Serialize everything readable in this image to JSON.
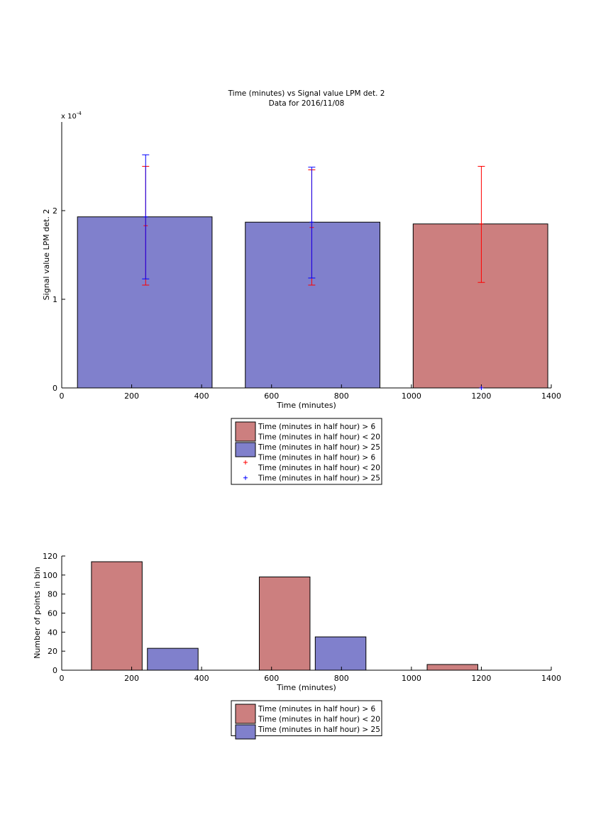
{
  "chart_data": [
    {
      "type": "bar",
      "title": "Time (minutes) vs Signal value LPM det. 2",
      "subtitle": "Data for 2016/11/08",
      "xlabel": "Time (minutes)",
      "ylabel": "Signal value LPM det. 2",
      "exponent_label": "x 10",
      "exponent_power": "-4",
      "xlim": [
        0,
        1400
      ],
      "ylim": [
        0,
        0.0003
      ],
      "x_ticks": [
        "0",
        "200",
        "400",
        "600",
        "800",
        "1000",
        "1200",
        "1400"
      ],
      "y_ticks": [
        "0",
        "1",
        "2"
      ],
      "bars": [
        {
          "x_start": 45,
          "x_end": 430,
          "value": 0.000193,
          "color": "#8080cc"
        },
        {
          "x_start": 525,
          "x_end": 910,
          "value": 0.000187,
          "color": "#8080cc"
        },
        {
          "x_start": 1005,
          "x_end": 1390,
          "value": 0.000185,
          "color": "#cc7f7f"
        }
      ],
      "error_bars": [
        {
          "x": 240,
          "center": 0.000183,
          "low": 0.000116,
          "high": 0.00025,
          "color": "#ff0000"
        },
        {
          "x": 240,
          "center": 0.000193,
          "low": 0.000123,
          "high": 0.000263,
          "color": "#0000ff"
        },
        {
          "x": 715,
          "center": 0.000181,
          "low": 0.000116,
          "high": 0.000246,
          "color": "#ff0000"
        },
        {
          "x": 715,
          "center": 0.000187,
          "low": 0.000124,
          "high": 0.000249,
          "color": "#0000ff"
        },
        {
          "x": 1200,
          "center": 0.000185,
          "low": 0.000119,
          "high": 0.00025,
          "color": "#ff0000"
        }
      ],
      "extra_markers": [
        {
          "x": 1200,
          "y": 0.0,
          "color": "#0000ff"
        }
      ],
      "legend": {
        "placement": "below",
        "entries": [
          {
            "kind": "patch",
            "color": "#cc7f7f",
            "lines": [
              "Time (minutes in half hour) > 6",
              "Time (minutes in half hour) < 20"
            ]
          },
          {
            "kind": "patch",
            "color": "#8080cc",
            "lines": [
              "Time (minutes in half hour) > 25"
            ]
          },
          {
            "kind": "marker",
            "color": "#ff0000",
            "lines": [
              "Time (minutes in half hour) > 6",
              "Time (minutes in half hour) < 20"
            ]
          },
          {
            "kind": "marker",
            "color": "#0000ff",
            "lines": [
              "Time (minutes in half hour) > 25"
            ]
          }
        ]
      }
    },
    {
      "type": "bar",
      "xlabel": "Time (minutes)",
      "ylabel": "Number of points in bin",
      "xlim": [
        0,
        1400
      ],
      "ylim": [
        0,
        120
      ],
      "x_ticks": [
        "0",
        "200",
        "400",
        "600",
        "800",
        "1000",
        "1200",
        "1400"
      ],
      "y_ticks": [
        "0",
        "20",
        "40",
        "60",
        "80",
        "100",
        "120"
      ],
      "bars": [
        {
          "x_start": 85,
          "x_end": 230,
          "value": 114,
          "color": "#cc7f7f"
        },
        {
          "x_start": 245,
          "x_end": 390,
          "value": 23,
          "color": "#8080cc"
        },
        {
          "x_start": 565,
          "x_end": 710,
          "value": 98,
          "color": "#cc7f7f"
        },
        {
          "x_start": 725,
          "x_end": 870,
          "value": 35,
          "color": "#8080cc"
        },
        {
          "x_start": 1045,
          "x_end": 1190,
          "value": 6,
          "color": "#cc7f7f"
        }
      ],
      "legend": {
        "placement": "below",
        "entries": [
          {
            "kind": "patch",
            "color": "#cc7f7f",
            "lines": [
              "Time (minutes in half hour) > 6",
              "Time (minutes in half hour) < 20"
            ]
          },
          {
            "kind": "patch",
            "color": "#8080cc",
            "lines": [
              "Time (minutes in half hour) > 25"
            ]
          }
        ]
      }
    }
  ]
}
